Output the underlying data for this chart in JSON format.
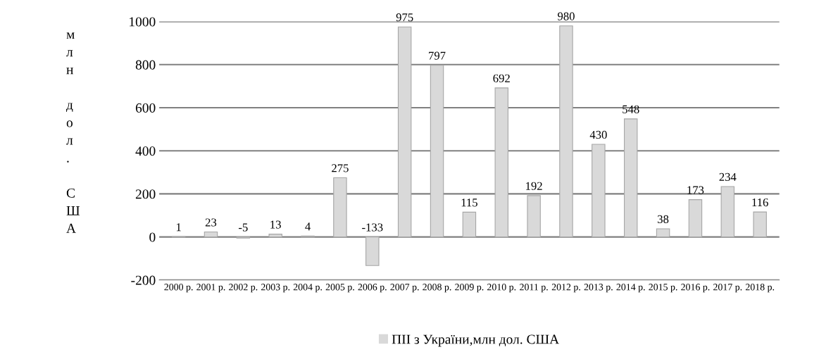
{
  "chart_data": {
    "type": "bar",
    "ylabel": "млн дол. США",
    "categories": [
      "2000 р.",
      "2001 р.",
      "2002 р.",
      "2003 р.",
      "2004 р.",
      "2005 р.",
      "2006 р.",
      "2007 р.",
      "2008 р.",
      "2009 р.",
      "2010 р.",
      "2011 р.",
      "2012 р.",
      "2013 р.",
      "2014 р.",
      "2015 р.",
      "2016 р.",
      "2017 р.",
      "2018 р."
    ],
    "series": [
      {
        "name": "ПІІ з України,млн дол. США",
        "color": "#d9d9d9",
        "values": [
          1,
          23,
          -5,
          13,
          4,
          275,
          -133,
          975,
          797,
          115,
          692,
          192,
          980,
          430,
          548,
          38,
          173,
          234,
          116
        ]
      }
    ],
    "ylim": [
      -200,
      1000
    ],
    "yticks": [
      -200,
      0,
      200,
      400,
      600,
      800,
      1000
    ],
    "grid": "y",
    "legend": "bottom",
    "data_labels": true
  }
}
